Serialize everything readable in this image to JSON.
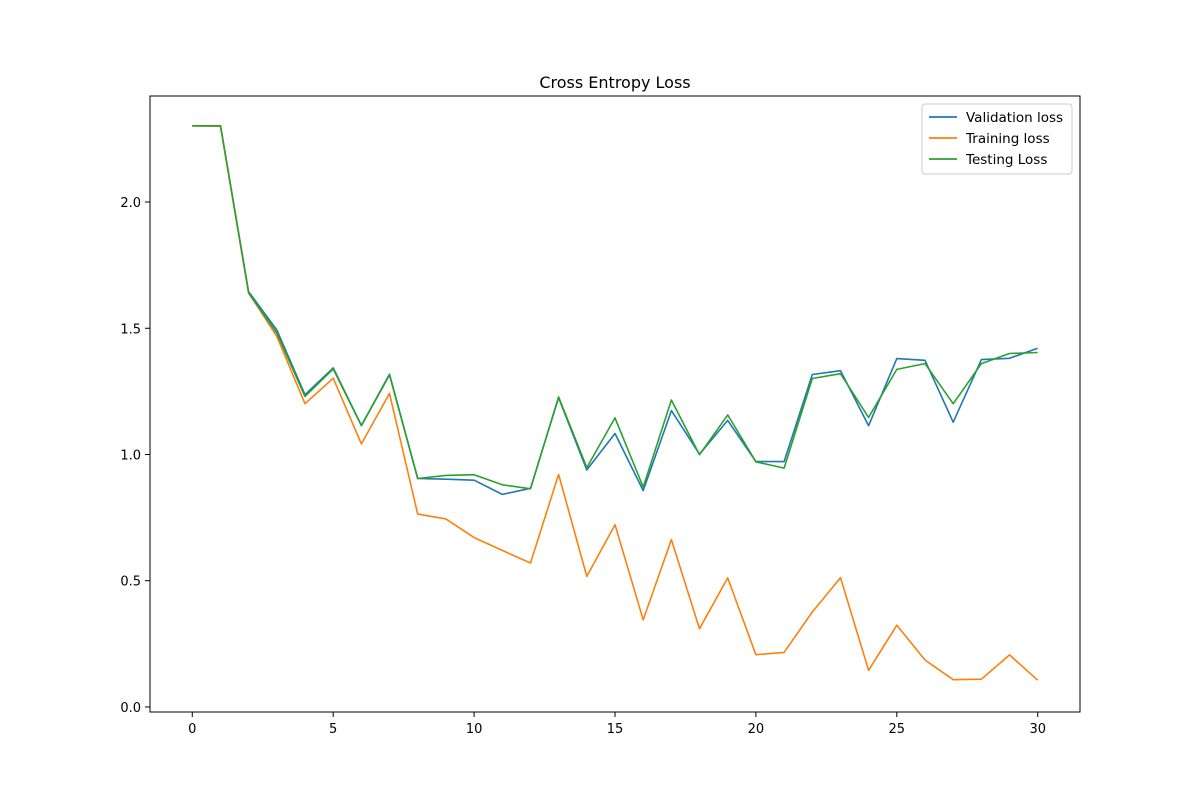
{
  "chart_data": {
    "type": "line",
    "title": "Cross Entropy Loss",
    "xlabel": "",
    "ylabel": "",
    "xlim": [
      -1.5,
      31.5
    ],
    "ylim": [
      -0.02,
      2.42
    ],
    "xticks": [
      0,
      5,
      10,
      15,
      20,
      25,
      30
    ],
    "xtick_labels": [
      "0",
      "5",
      "10",
      "15",
      "20",
      "25",
      "30"
    ],
    "yticks": [
      0.0,
      0.5,
      1.0,
      1.5,
      2.0
    ],
    "ytick_labels": [
      "0.0",
      "0.5",
      "1.0",
      "1.5",
      "2.0"
    ],
    "grid": false,
    "legend_position": "top-right",
    "x": [
      0,
      1,
      2,
      3,
      4,
      5,
      6,
      7,
      8,
      9,
      10,
      11,
      12,
      13,
      14,
      15,
      16,
      17,
      18,
      19,
      20,
      21,
      22,
      23,
      24,
      25,
      26,
      27,
      28,
      29,
      30
    ],
    "series": [
      {
        "name": "Validation loss",
        "color": "#1f77b4",
        "values": [
          2.302,
          2.302,
          1.645,
          1.493,
          1.237,
          1.343,
          1.115,
          1.318,
          0.905,
          0.902,
          0.898,
          0.842,
          0.866,
          1.225,
          0.939,
          1.083,
          0.857,
          1.174,
          1.001,
          1.135,
          0.972,
          0.972,
          1.317,
          1.332,
          1.114,
          1.38,
          1.373,
          1.128,
          1.376,
          1.381,
          1.421
        ]
      },
      {
        "name": "Training loss",
        "color": "#ff7f0e",
        "values": [
          2.302,
          2.3,
          1.64,
          1.468,
          1.201,
          1.302,
          1.042,
          1.242,
          0.764,
          0.745,
          0.671,
          0.62,
          0.57,
          0.921,
          0.517,
          0.722,
          0.345,
          0.663,
          0.31,
          0.511,
          0.207,
          0.216,
          0.376,
          0.512,
          0.145,
          0.324,
          0.186,
          0.108,
          0.11,
          0.206,
          0.106
        ]
      },
      {
        "name": "Testing Loss",
        "color": "#2ca02c",
        "values": [
          2.302,
          2.302,
          1.64,
          1.481,
          1.23,
          1.339,
          1.114,
          1.315,
          0.905,
          0.917,
          0.92,
          0.88,
          0.864,
          1.228,
          0.948,
          1.145,
          0.871,
          1.216,
          0.999,
          1.157,
          0.971,
          0.946,
          1.301,
          1.32,
          1.147,
          1.337,
          1.36,
          1.201,
          1.36,
          1.4,
          1.404
        ]
      }
    ]
  }
}
